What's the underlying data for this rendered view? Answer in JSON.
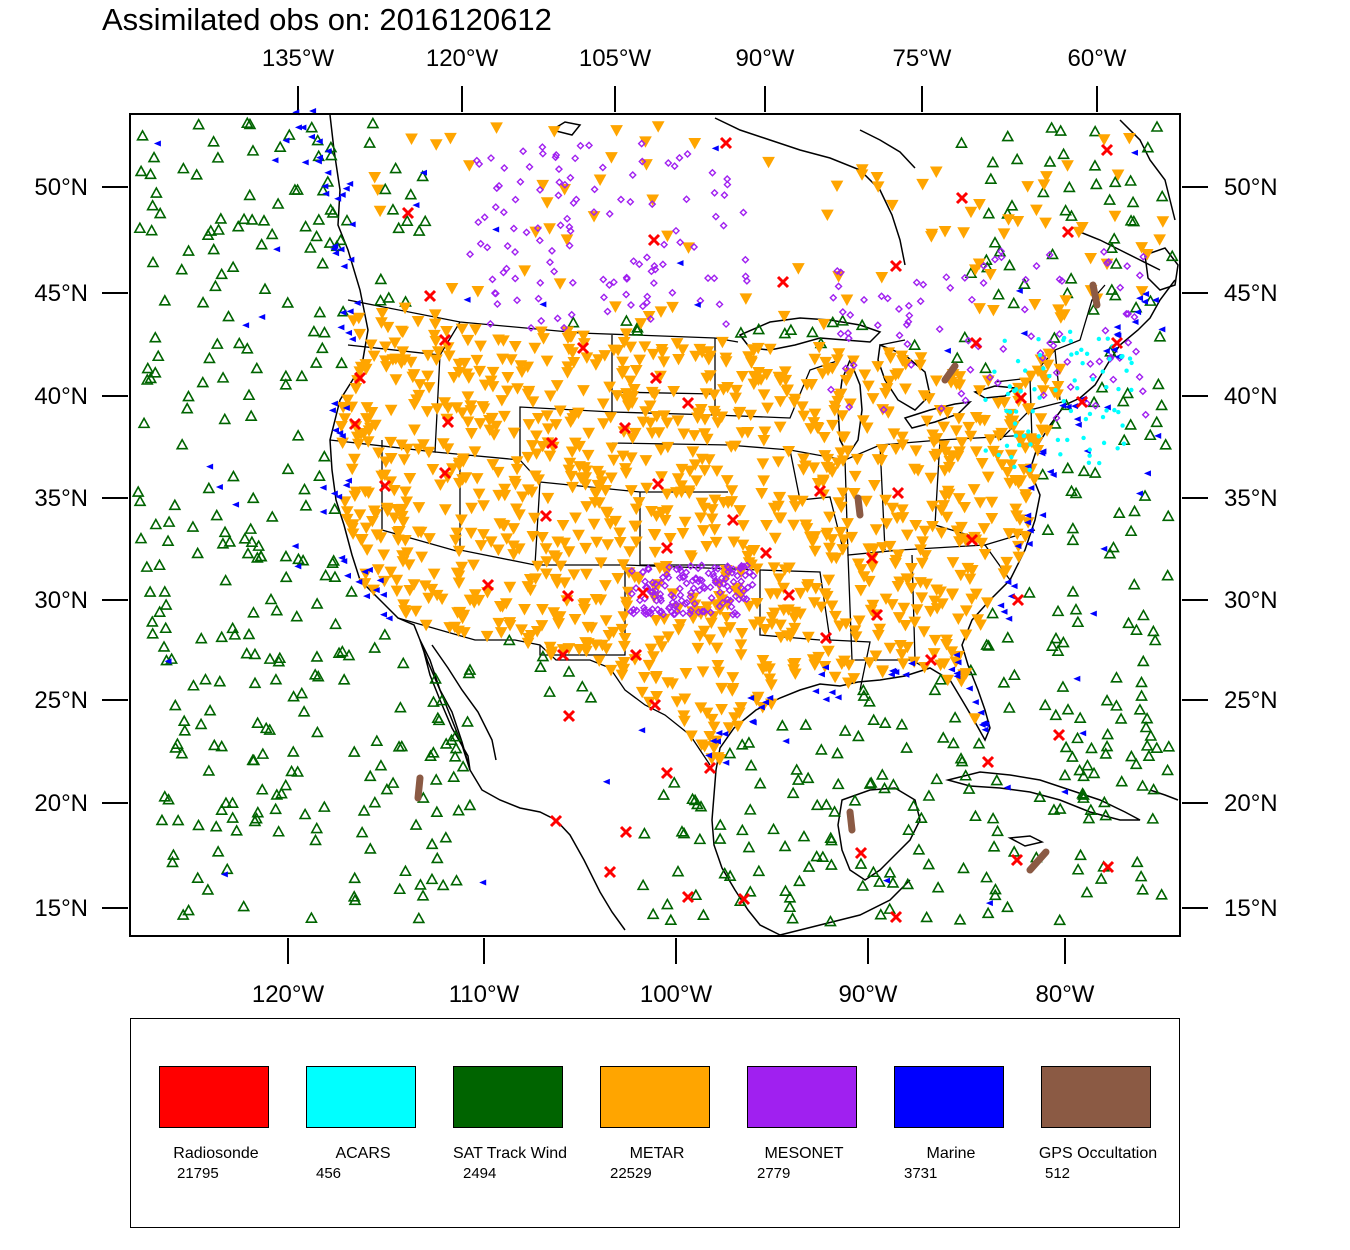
{
  "title": "Assimilated obs on: 2016120612",
  "axes": {
    "top_lon_labels": [
      "135°W",
      "120°W",
      "105°W",
      "90°W",
      "75°W",
      "60°W"
    ],
    "bottom_lon_labels": [
      "120°W",
      "110°W",
      "100°W",
      "90°W",
      "80°W"
    ],
    "lat_labels": [
      "50°N",
      "45°N",
      "40°N",
      "35°N",
      "30°N",
      "25°N",
      "20°N",
      "15°N"
    ]
  },
  "legend": [
    {
      "name": "Radiosonde",
      "count": "21795",
      "color": "#ff0000"
    },
    {
      "name": "ACARS",
      "count": "456",
      "color": "#00ffff"
    },
    {
      "name": "SAT Track Wind",
      "count": "2494",
      "color": "#006400"
    },
    {
      "name": "METAR",
      "count": "22529",
      "color": "#ffa500"
    },
    {
      "name": "MESONET",
      "count": "2779",
      "color": "#a020f0"
    },
    {
      "name": "Marine",
      "count": "3731",
      "color": "#0000ff"
    },
    {
      "name": "GPS Occultation",
      "count": "512",
      "color": "#8b5a44"
    }
  ]
}
